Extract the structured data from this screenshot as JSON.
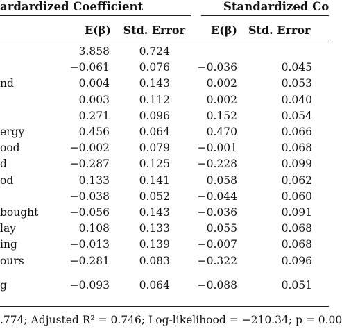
{
  "headers": {
    "group1": "ardardized Coefficient",
    "group2": "Standardized Co",
    "e_beta": "E(β)",
    "std_error": "Std. Error"
  },
  "row_labels": [
    "nd",
    "ergy",
    "ood",
    "d",
    "od",
    "bought",
    "lay",
    "ing",
    "ours",
    "g"
  ],
  "rows": [
    {
      "label": "",
      "u_e": "3.858",
      "u_se": "0.724",
      "s_e": "",
      "s_se": ""
    },
    {
      "label": "",
      "u_e": "−0.061",
      "u_se": "0.076",
      "s_e": "−0.036",
      "s_se": "0.045"
    },
    {
      "label": "nd",
      "u_e": "0.004",
      "u_se": "0.143",
      "s_e": "0.002",
      "s_se": "0.053"
    },
    {
      "label": "",
      "u_e": "0.003",
      "u_se": "0.112",
      "s_e": "0.002",
      "s_se": "0.040"
    },
    {
      "label": "",
      "u_e": "0.271",
      "u_se": "0.096",
      "s_e": "0.152",
      "s_se": "0.054"
    },
    {
      "label": "ergy",
      "u_e": "0.456",
      "u_se": "0.064",
      "s_e": "0.470",
      "s_se": "0.066"
    },
    {
      "label": "ood",
      "u_e": "−0.002",
      "u_se": "0.079",
      "s_e": "−0.001",
      "s_se": "0.068"
    },
    {
      "label": "d",
      "u_e": "−0.287",
      "u_se": "0.125",
      "s_e": "−0.228",
      "s_se": "0.099"
    },
    {
      "label": "od",
      "u_e": "0.133",
      "u_se": "0.141",
      "s_e": "0.058",
      "s_se": "0.062"
    },
    {
      "label": "",
      "u_e": "−0.038",
      "u_se": "0.052",
      "s_e": "−0.044",
      "s_se": "0.060"
    },
    {
      "label": "bought",
      "u_e": "−0.056",
      "u_se": "0.143",
      "s_e": "−0.036",
      "s_se": "0.091"
    },
    {
      "label": "lay",
      "u_e": "0.108",
      "u_se": "0.133",
      "s_e": "0.055",
      "s_se": "0.068"
    },
    {
      "label": "ing",
      "u_e": "−0.013",
      "u_se": "0.139",
      "s_e": "−0.007",
      "s_se": "0.068"
    },
    {
      "label": "ours",
      "u_e": "−0.281",
      "u_se": "0.083",
      "s_e": "−0.322",
      "s_se": "0.096"
    },
    {
      "label": "g",
      "u_e": "−0.093",
      "u_se": "0.064",
      "s_e": "−0.088",
      "s_se": "0.051"
    }
  ],
  "footnote": ".774; Adjusted R² = 0.746; Log-likelihood = −210.34; p = 0.00"
}
